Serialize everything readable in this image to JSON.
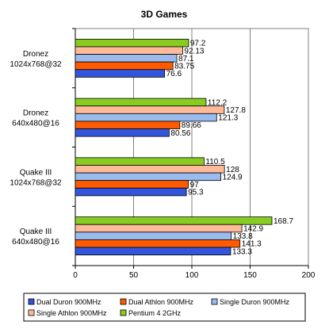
{
  "chart_data": {
    "type": "bar",
    "orientation": "horizontal",
    "title": "3D Games",
    "xlim": [
      0,
      200
    ],
    "xticks": [
      0,
      50,
      100,
      150,
      200
    ],
    "grid": true,
    "legend_position": "bottom",
    "categories": [
      [
        "Dronez",
        "1024x768@32"
      ],
      [
        "Dronez",
        "640x480@16"
      ],
      [
        "Quake III",
        "1024x768@32"
      ],
      [
        "Quake III",
        "640x480@16"
      ]
    ],
    "series": [
      {
        "name": "Dual Duron 900MHz",
        "color": "#3355dd",
        "values": [
          76.6,
          80.56,
          95.3,
          133.3
        ],
        "labels": [
          "76.6",
          "80.56",
          "95.3",
          "133.3"
        ]
      },
      {
        "name": "Dual Athlon 900MHz",
        "color": "#ff5a00",
        "values": [
          83.75,
          89.66,
          97,
          141.3
        ],
        "labels": [
          "83.75",
          "89.66",
          "97",
          "141.3"
        ]
      },
      {
        "name": "Single Duron 900MHz",
        "color": "#99bbee",
        "values": [
          87.1,
          121.3,
          124.9,
          133.8
        ],
        "labels": [
          "87.1",
          "121.3",
          "124.9",
          "133.8"
        ]
      },
      {
        "name": "Single Athlon 900MHz",
        "color": "#ffbb99",
        "values": [
          92.13,
          127.8,
          128,
          142.9
        ],
        "labels": [
          "92.13",
          "127.8",
          "128",
          "142.9"
        ]
      },
      {
        "name": "Pentium 4 2GHz",
        "color": "#88cc22",
        "values": [
          97.2,
          112.2,
          110.5,
          168.7
        ],
        "labels": [
          "97.2",
          "112.2",
          "110.5",
          "168.7"
        ]
      }
    ],
    "legend_layout": [
      [
        "Dual Duron 900MHz",
        "Dual Athlon 900MHz",
        "Single Duron 900MHz"
      ],
      [
        "Single Athlon 900MHz",
        "Pentium 4 2GHz"
      ]
    ]
  }
}
